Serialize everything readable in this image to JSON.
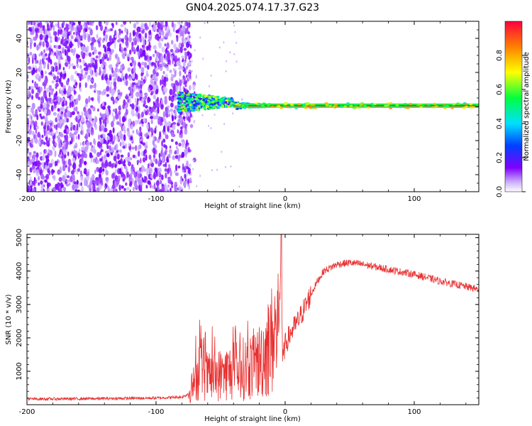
{
  "title": "GN04.2025.074.17.37.G23",
  "chart_data": [
    {
      "type": "heatmap",
      "xlabel": "Height of straight line (km)",
      "ylabel": "Frequency (Hz)",
      "xlim": [
        -200,
        150
      ],
      "ylim": [
        -50,
        50
      ],
      "x_ticks": [
        -200,
        -100,
        0,
        100
      ],
      "y_ticks": [
        -40,
        -20,
        0,
        20,
        40
      ],
      "colorbar": {
        "label": "Normalized spectral amplitude",
        "range": [
          0,
          1
        ],
        "ticks": [
          "0.0",
          "0.2",
          "0.4",
          "0.6",
          "0.8"
        ],
        "colormap": [
          "#ffffff",
          "#8000ff",
          "#0040ff",
          "#00e0ff",
          "#00ff40",
          "#ffff00",
          "#ff8000",
          "#ff0040"
        ]
      },
      "features": [
        {
          "name": "noise",
          "x_range": [
            -200,
            -73
          ],
          "freq_range": [
            -50,
            50
          ],
          "amplitude": 0.15
        },
        {
          "name": "signal",
          "x_range": [
            -83,
            150
          ],
          "freq_center": 0.5,
          "amplitude": 0.95
        }
      ],
      "grid": false
    },
    {
      "type": "line",
      "xlabel": "Height of straight line (km)",
      "ylabel": "SNR (10 * v/v)",
      "xlim": [
        -200,
        150
      ],
      "ylim": [
        0,
        5100
      ],
      "x_ticks": [
        -200,
        -100,
        0,
        100
      ],
      "y_ticks": [
        1000,
        2000,
        3000,
        4000,
        5000
      ],
      "series_color": "#e83030",
      "profile_x": [
        -200,
        -150,
        -100,
        -80,
        -76,
        -73,
        -70,
        -65,
        -60,
        -50,
        -40,
        -30,
        -20,
        -12,
        -8,
        -5,
        -3,
        -2,
        0,
        5,
        10,
        15,
        20,
        25,
        30,
        40,
        50,
        60,
        80,
        100,
        120,
        150
      ],
      "profile_y": [
        170,
        180,
        200,
        230,
        300,
        450,
        700,
        1200,
        800,
        900,
        1000,
        1100,
        1300,
        1800,
        2100,
        2300,
        4500,
        1300,
        1800,
        2200,
        2500,
        2900,
        3300,
        3700,
        4000,
        4200,
        4250,
        4200,
        4050,
        3900,
        3700,
        3450
      ],
      "grid": false
    }
  ]
}
